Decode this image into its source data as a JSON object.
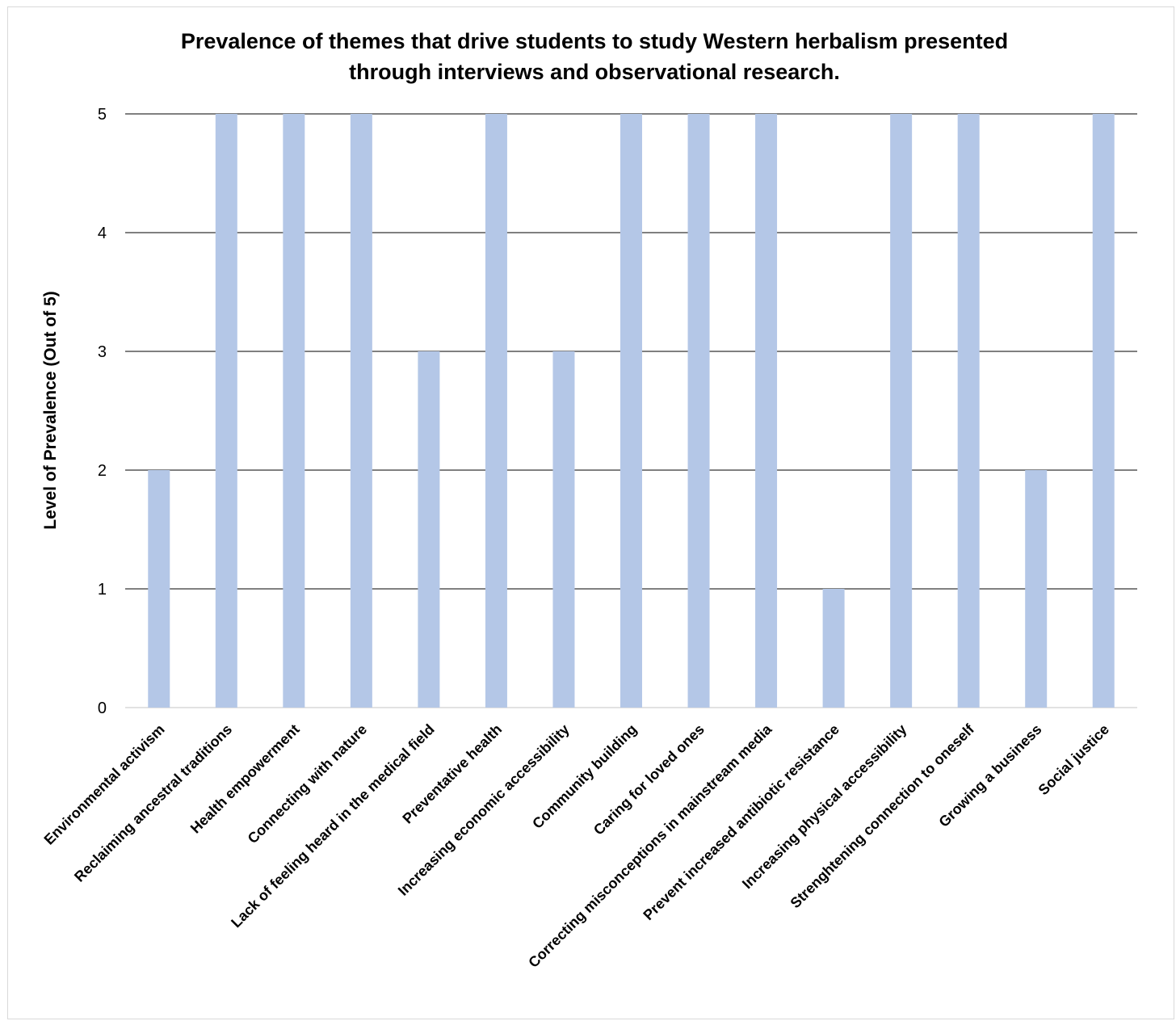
{
  "chart_data": {
    "type": "bar",
    "title_lines": [
      "Prevalence of themes that drive students to study Western herbalism presented",
      "through interviews and observational research."
    ],
    "xlabel": "",
    "ylabel": "Level of Prevalence (Out of 5)",
    "ylim": [
      0,
      5
    ],
    "yticks": [
      "0",
      "1",
      "2",
      "3",
      "4",
      "5"
    ],
    "grid": true,
    "legend": "none",
    "bar_color": "#b4c7e7",
    "categories": [
      "Environmental activism",
      "Reclaiming ancestral traditions",
      "Health empowerment",
      "Connecting with nature",
      "Lack of feeling heard in the medical field",
      "Preventative health",
      "Increasing economic accessibility",
      "Community building",
      "Caring for loved ones",
      "Correcting misconceptions in mainstream media",
      "Prevent increased antibiotic resistance",
      "Increasing physical accessibility",
      "Strenghtening connection to oneself",
      "Growing a business",
      "Social justice"
    ],
    "values": [
      2,
      5,
      5,
      5,
      3,
      5,
      3,
      5,
      5,
      5,
      1,
      5,
      5,
      2,
      5
    ]
  }
}
